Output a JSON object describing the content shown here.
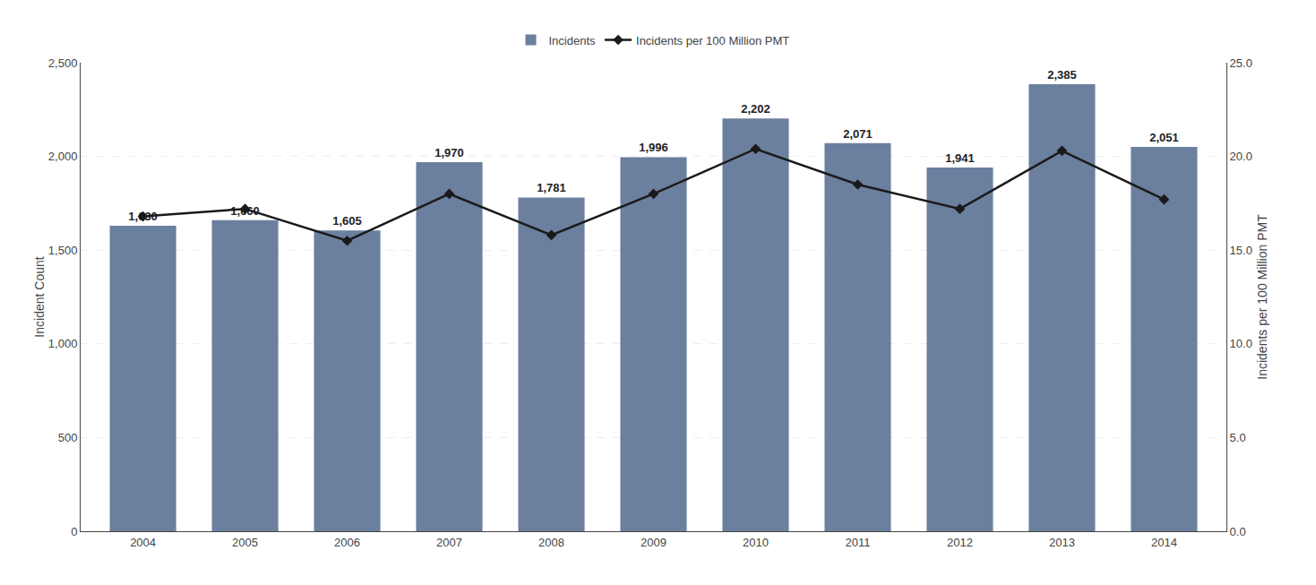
{
  "chart_data": {
    "type": "bar",
    "categories": [
      "2004",
      "2005",
      "2006",
      "2007",
      "2008",
      "2009",
      "2010",
      "2011",
      "2012",
      "2013",
      "2014"
    ],
    "series": [
      {
        "name": "Incidents",
        "type": "bar",
        "color": "#6B7F9E",
        "values": [
          1630,
          1660,
          1605,
          1970,
          1781,
          1996,
          2202,
          2071,
          1941,
          2385,
          2051
        ],
        "data_labels": true,
        "value_labels": [
          "1,630",
          "1,660",
          "1,605",
          "1,970",
          "1,781",
          "1,996",
          "2,202",
          "2,071",
          "1,941",
          "2,385",
          "2,051"
        ]
      },
      {
        "name": "Incidents per 100 Million PMT",
        "type": "line",
        "axis": "y2",
        "color": "#1a1a1a",
        "marker": "diamond",
        "line_style": "solid",
        "values": [
          16.8,
          17.2,
          15.5,
          18.0,
          15.8,
          18.0,
          20.4,
          18.5,
          17.2,
          20.3,
          17.7
        ]
      }
    ],
    "ylabel": "Incident Count",
    "y2label": "Incidents per 100 Million PMT",
    "ylim": [
      0,
      2500
    ],
    "yticks": [
      0,
      500,
      {
        "value": 1000,
        "label": "1,000"
      },
      {
        "value": 1500,
        "label": "1,500"
      },
      {
        "value": 2000,
        "label": "2,000"
      },
      {
        "value": 2500,
        "label": "2,500"
      }
    ],
    "y2lim": [
      0,
      25.0
    ],
    "y2ticks": [
      {
        "value": 0.0,
        "label": "0.0"
      },
      {
        "value": 5.0,
        "label": "5.0"
      },
      {
        "value": 10.0,
        "label": "10.0"
      },
      {
        "value": 15.0,
        "label": "15.0"
      },
      {
        "value": 20.0,
        "label": "20.0"
      },
      {
        "value": 25.0,
        "label": "25.0"
      }
    ],
    "grid": true,
    "legend": "top"
  }
}
